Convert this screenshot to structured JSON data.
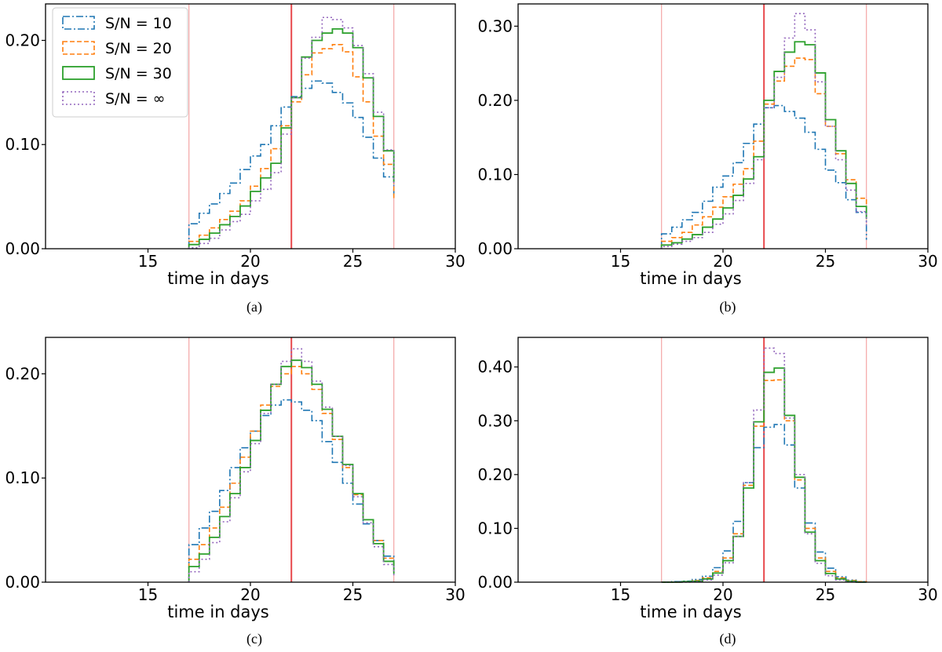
{
  "chart_data": [
    {
      "type": "histogram-step",
      "caption": "(a)",
      "xlabel": "time in days",
      "xlim": [
        10,
        30
      ],
      "ylim": [
        0,
        0.235
      ],
      "xticks": [
        15,
        20,
        25,
        30
      ],
      "ytick_labels": [
        "0.00",
        "0.10",
        "0.20"
      ],
      "yticks": [
        0,
        0.1,
        0.2
      ],
      "vlines": {
        "center": 22,
        "bounds": [
          17,
          27
        ]
      },
      "bin_edges": [
        17,
        17.5,
        18,
        18.5,
        19,
        19.5,
        20,
        20.5,
        21,
        21.5,
        22,
        22.5,
        23,
        23.5,
        24,
        24.5,
        25,
        25.5,
        26,
        26.5,
        27
      ],
      "series": [
        {
          "name": "S/N = 10",
          "values": [
            0.024,
            0.034,
            0.043,
            0.053,
            0.063,
            0.076,
            0.089,
            0.1,
            0.118,
            0.136,
            0.146,
            0.154,
            0.161,
            0.159,
            0.15,
            0.14,
            0.126,
            0.107,
            0.087,
            0.069,
            0.05
          ]
        },
        {
          "name": "S/N = 20",
          "values": [
            0.007,
            0.013,
            0.02,
            0.028,
            0.036,
            0.046,
            0.06,
            0.077,
            0.096,
            0.118,
            0.141,
            0.167,
            0.188,
            0.192,
            0.196,
            0.189,
            0.165,
            0.141,
            0.108,
            0.081,
            0.048
          ]
        },
        {
          "name": "S/N = 30",
          "values": [
            0.004,
            0.009,
            0.015,
            0.023,
            0.031,
            0.041,
            0.055,
            0.068,
            0.082,
            0.116,
            0.145,
            0.184,
            0.2,
            0.207,
            0.211,
            0.207,
            0.193,
            0.164,
            0.127,
            0.094,
            0.064
          ]
        },
        {
          "name": "S/N = ∞",
          "values": [
            0.001,
            0.005,
            0.01,
            0.018,
            0.026,
            0.033,
            0.046,
            0.057,
            0.073,
            0.11,
            0.145,
            0.183,
            0.203,
            0.222,
            0.22,
            0.212,
            0.195,
            0.168,
            0.131,
            0.095,
            0.06
          ]
        }
      ]
    },
    {
      "type": "histogram-step",
      "caption": "(b)",
      "xlabel": "time in days",
      "xlim": [
        10,
        30
      ],
      "ylim": [
        0,
        0.33
      ],
      "xticks": [
        15,
        20,
        25,
        30
      ],
      "ytick_labels": [
        "0.00",
        "0.10",
        "0.20",
        "0.30"
      ],
      "yticks": [
        0,
        0.1,
        0.2,
        0.3
      ],
      "vlines": {
        "center": 22,
        "bounds": [
          17,
          27
        ]
      },
      "bin_edges": [
        17,
        17.5,
        18,
        18.5,
        19,
        19.5,
        20,
        20.5,
        21,
        21.5,
        22,
        22.5,
        23,
        23.5,
        24,
        24.5,
        25,
        25.5,
        26,
        26.5,
        27
      ],
      "series": [
        {
          "name": "S/N = 10",
          "values": [
            0.02,
            0.029,
            0.039,
            0.049,
            0.064,
            0.083,
            0.098,
            0.116,
            0.142,
            0.168,
            0.19,
            0.193,
            0.185,
            0.176,
            0.157,
            0.134,
            0.106,
            0.089,
            0.066,
            0.049,
            0.012
          ]
        },
        {
          "name": "S/N = 20",
          "values": [
            0.01,
            0.015,
            0.022,
            0.032,
            0.043,
            0.056,
            0.07,
            0.087,
            0.108,
            0.145,
            0.195,
            0.226,
            0.246,
            0.257,
            0.255,
            0.209,
            0.165,
            0.128,
            0.093,
            0.068,
            0.047
          ]
        },
        {
          "name": "S/N = 30",
          "values": [
            0.005,
            0.008,
            0.013,
            0.019,
            0.029,
            0.04,
            0.055,
            0.072,
            0.094,
            0.124,
            0.2,
            0.239,
            0.265,
            0.279,
            0.275,
            0.237,
            0.174,
            0.132,
            0.088,
            0.057,
            0.04
          ]
        },
        {
          "name": "S/N = ∞",
          "values": [
            0.003,
            0.006,
            0.01,
            0.015,
            0.022,
            0.033,
            0.047,
            0.065,
            0.088,
            0.12,
            0.19,
            0.231,
            0.284,
            0.317,
            0.295,
            0.225,
            0.165,
            0.12,
            0.079,
            0.05,
            0.031
          ]
        }
      ]
    },
    {
      "type": "histogram-step",
      "caption": "(c)",
      "xlabel": "time in days",
      "xlim": [
        10,
        30
      ],
      "ylim": [
        0,
        0.235
      ],
      "xticks": [
        15,
        20,
        25,
        30
      ],
      "ytick_labels": [
        "0.00",
        "0.10",
        "0.20"
      ],
      "yticks": [
        0,
        0.1,
        0.2
      ],
      "vlines": {
        "center": 22,
        "bounds": [
          17,
          27
        ]
      },
      "bin_edges": [
        17,
        17.5,
        18,
        18.5,
        19,
        19.5,
        20,
        20.5,
        21,
        21.5,
        22,
        22.5,
        23,
        23.5,
        24,
        24.5,
        25,
        25.5,
        26,
        26.5,
        27
      ],
      "series": [
        {
          "name": "S/N = 10",
          "values": [
            0.036,
            0.052,
            0.068,
            0.088,
            0.11,
            0.129,
            0.145,
            0.16,
            0.17,
            0.175,
            0.173,
            0.165,
            0.155,
            0.135,
            0.115,
            0.095,
            0.075,
            0.056,
            0.04,
            0.025,
            0.014
          ]
        },
        {
          "name": "S/N = 20",
          "values": [
            0.022,
            0.036,
            0.052,
            0.072,
            0.095,
            0.12,
            0.145,
            0.17,
            0.188,
            0.2,
            0.207,
            0.2,
            0.185,
            0.162,
            0.137,
            0.11,
            0.084,
            0.06,
            0.04,
            0.023,
            0.01
          ]
        },
        {
          "name": "S/N = 30",
          "values": [
            0.015,
            0.027,
            0.043,
            0.063,
            0.085,
            0.11,
            0.136,
            0.165,
            0.19,
            0.207,
            0.213,
            0.206,
            0.19,
            0.166,
            0.14,
            0.113,
            0.085,
            0.06,
            0.037,
            0.02,
            0.008
          ]
        },
        {
          "name": "S/N = ∞",
          "values": [
            0.01,
            0.022,
            0.038,
            0.058,
            0.081,
            0.106,
            0.133,
            0.162,
            0.19,
            0.212,
            0.224,
            0.212,
            0.193,
            0.168,
            0.14,
            0.112,
            0.082,
            0.057,
            0.034,
            0.017,
            0.006
          ]
        }
      ]
    },
    {
      "type": "histogram-step",
      "caption": "(d)",
      "xlabel": "time in days",
      "xlim": [
        10,
        30
      ],
      "ylim": [
        0,
        0.455
      ],
      "xticks": [
        15,
        20,
        25,
        30
      ],
      "ytick_labels": [
        "0.00",
        "0.10",
        "0.20",
        "0.30",
        "0.40"
      ],
      "yticks": [
        0,
        0.1,
        0.2,
        0.3,
        0.4
      ],
      "vlines": {
        "center": 22,
        "bounds": [
          17,
          27
        ]
      },
      "bin_edges": [
        17,
        17.5,
        18,
        18.5,
        19,
        19.5,
        20,
        20.5,
        21,
        21.5,
        22,
        22.5,
        23,
        23.5,
        24,
        24.5,
        25,
        25.5,
        26,
        26.5,
        27
      ],
      "series": [
        {
          "name": "S/N = 10",
          "values": [
            0.0,
            0.001,
            0.002,
            0.005,
            0.011,
            0.027,
            0.058,
            0.113,
            0.185,
            0.25,
            0.288,
            0.293,
            0.255,
            0.175,
            0.11,
            0.056,
            0.026,
            0.01,
            0.004,
            0.001,
            0.0
          ]
        },
        {
          "name": "S/N = 20",
          "values": [
            0.0,
            0.0,
            0.001,
            0.003,
            0.008,
            0.02,
            0.045,
            0.09,
            0.18,
            0.29,
            0.375,
            0.376,
            0.3,
            0.19,
            0.1,
            0.045,
            0.02,
            0.008,
            0.003,
            0.001,
            0.0
          ]
        },
        {
          "name": "S/N = 30",
          "values": [
            0.0,
            0.0,
            0.001,
            0.002,
            0.006,
            0.017,
            0.04,
            0.085,
            0.175,
            0.298,
            0.39,
            0.398,
            0.31,
            0.195,
            0.093,
            0.04,
            0.016,
            0.006,
            0.002,
            0.0,
            0.0
          ]
        },
        {
          "name": "S/N = ∞",
          "values": [
            0.0,
            0.0,
            0.0,
            0.001,
            0.004,
            0.013,
            0.036,
            0.085,
            0.185,
            0.32,
            0.435,
            0.425,
            0.305,
            0.2,
            0.09,
            0.035,
            0.012,
            0.004,
            0.001,
            0.0,
            0.0
          ]
        }
      ]
    }
  ],
  "legend": {
    "placement": "top-left of panel (a)",
    "entries": [
      "S/N = 10",
      "S/N = 20",
      "S/N = 30",
      "S/N = ∞"
    ]
  },
  "colors": {
    "s10": "#1f77b4",
    "s20": "#ff7f0e",
    "s30": "#2ca02c",
    "sinf": "#9467bd",
    "center_line": "#e8474b",
    "bound_line": "#f4a6a6"
  }
}
